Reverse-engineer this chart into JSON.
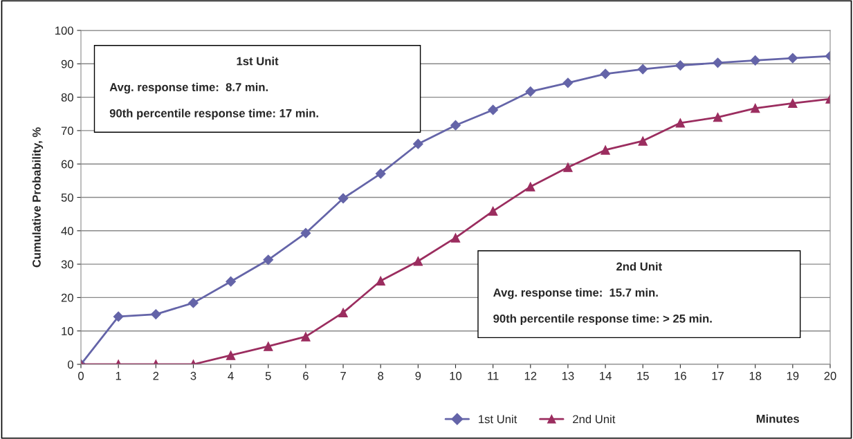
{
  "chart_data": {
    "type": "line",
    "xlabel": "Minutes",
    "ylabel": "Cumulative Probability, %",
    "x": [
      0,
      1,
      2,
      3,
      4,
      5,
      6,
      7,
      8,
      9,
      10,
      11,
      12,
      13,
      14,
      15,
      16,
      17,
      18,
      19,
      20
    ],
    "series": [
      {
        "name": "1st Unit",
        "color": "#6464a8",
        "marker": "diamond",
        "values": [
          0,
          14.3,
          15.0,
          18.4,
          24.8,
          31.3,
          39.3,
          49.7,
          57.1,
          66.0,
          71.6,
          76.2,
          81.7,
          84.3,
          87.0,
          88.4,
          89.5,
          90.3,
          91.0,
          91.7,
          92.3
        ]
      },
      {
        "name": "2nd Unit",
        "color": "#9b2d5f",
        "marker": "triangle",
        "values": [
          0,
          0,
          0,
          0,
          2.7,
          5.4,
          8.3,
          15.5,
          25.0,
          30.9,
          37.9,
          45.9,
          53.2,
          59.0,
          64.2,
          66.9,
          72.3,
          74.0,
          76.7,
          78.2,
          79.5
        ]
      }
    ],
    "xlim": [
      0,
      20
    ],
    "ylim": [
      0,
      100
    ],
    "xticks": [
      0,
      1,
      2,
      3,
      4,
      5,
      6,
      7,
      8,
      9,
      10,
      11,
      12,
      13,
      14,
      15,
      16,
      17,
      18,
      19,
      20
    ],
    "yticks": [
      0,
      10,
      20,
      30,
      40,
      50,
      60,
      70,
      80,
      90,
      100
    ],
    "grid": "y",
    "legend": "bottom",
    "line_style": "solid",
    "annotations": [
      "1st Unit",
      "Avg. response time:  8.7 min.",
      "90th percentile response time: 17 min.",
      "2nd Unit",
      "Avg. response time:  15.7 min.",
      "90th percentile response time: > 25 min."
    ]
  }
}
